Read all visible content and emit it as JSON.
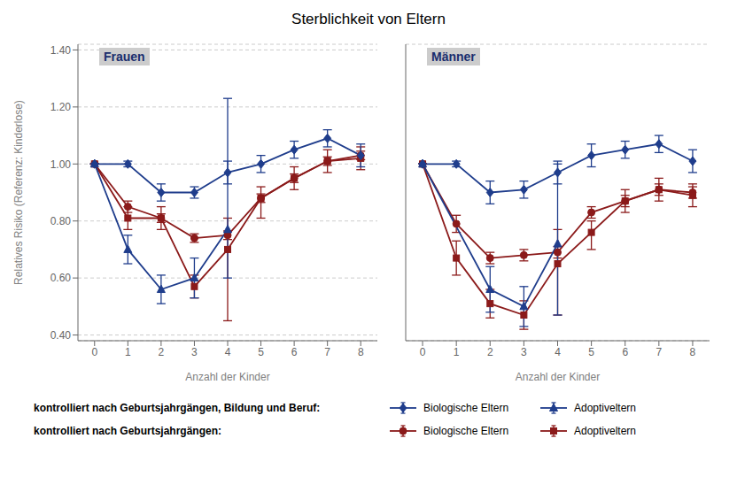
{
  "title": "Sterblichkeit von Eltern",
  "chart_data": [
    {
      "type": "line",
      "title": "Frauen",
      "xlabel": "Anzahl der Kinder",
      "ylabel": "Relatives Risiko (Referenz: Kinderlose)",
      "xlim": [
        -0.5,
        8.5
      ],
      "xticks": [
        0,
        1,
        2,
        3,
        4,
        5,
        6,
        7,
        8
      ],
      "ylim": [
        0.38,
        1.42
      ],
      "yticks": [
        {
          "value": 0.4,
          "label": "0.40"
        },
        {
          "value": 0.6,
          "label": "0.60"
        },
        {
          "value": 0.8,
          "label": "0.80"
        },
        {
          "value": 1.0,
          "label": "1.00"
        },
        {
          "value": 1.2,
          "label": "1.20"
        },
        {
          "value": 1.4,
          "label": "1.40"
        }
      ],
      "grid": true,
      "series": [
        {
          "name": "Biologische Eltern",
          "group": "kontrolliert nach Geburtsjahrgängen, Bildung und Beruf:",
          "color": "#1f3d8c",
          "marker": "diamond",
          "line_style": "solid",
          "x": [
            0,
            1,
            2,
            3,
            4,
            5,
            6,
            7,
            8
          ],
          "values": [
            1.0,
            1.0,
            0.9,
            0.9,
            0.97,
            1.0,
            1.05,
            1.09,
            1.03
          ],
          "yerr_lo": [
            0.0,
            0.01,
            0.03,
            0.02,
            0.04,
            0.03,
            0.03,
            0.03,
            0.04
          ],
          "yerr_hi": [
            0.0,
            0.01,
            0.03,
            0.02,
            0.04,
            0.03,
            0.03,
            0.03,
            0.04
          ]
        },
        {
          "name": "Adoptiveltern",
          "group": "kontrolliert nach Geburtsjahrgängen, Bildung und Beruf:",
          "color": "#1f3d8c",
          "marker": "triangle",
          "line_style": "solid",
          "x": [
            0,
            1,
            2,
            3,
            4
          ],
          "values": [
            1.0,
            0.7,
            0.56,
            0.6,
            0.77
          ],
          "yerr_lo": [
            0.0,
            0.05,
            0.05,
            0.07,
            0.17
          ],
          "yerr_hi": [
            0.0,
            0.05,
            0.05,
            0.07,
            0.46
          ]
        },
        {
          "name": "Biologische Eltern",
          "group": "kontrolliert nach Geburtsjahrgängen:",
          "color": "#8b1a1a",
          "marker": "circle",
          "line_style": "solid",
          "x": [
            0,
            1,
            2,
            3,
            4,
            5,
            6,
            7,
            8
          ],
          "values": [
            1.0,
            0.85,
            0.81,
            0.74,
            0.75,
            0.88,
            0.95,
            1.01,
            1.03
          ],
          "yerr_lo": [
            0.0,
            0.02,
            0.015,
            0.015,
            0.015,
            0.015,
            0.015,
            0.015,
            0.015
          ],
          "yerr_hi": [
            0.0,
            0.02,
            0.015,
            0.015,
            0.015,
            0.015,
            0.015,
            0.015,
            0.015
          ]
        },
        {
          "name": "Adoptiveltern",
          "group": "kontrolliert nach Geburtsjahrgängen:",
          "color": "#8b1a1a",
          "marker": "square",
          "line_style": "solid",
          "x": [
            0,
            1,
            2,
            3,
            4,
            5,
            6,
            7,
            8
          ],
          "values": [
            1.0,
            0.81,
            0.81,
            0.57,
            0.7,
            0.88,
            0.95,
            1.01,
            1.02
          ],
          "yerr_lo": [
            0.0,
            0.04,
            0.04,
            0.04,
            0.25,
            0.07,
            0.04,
            0.04,
            0.04
          ],
          "yerr_hi": [
            0.0,
            0.04,
            0.04,
            0.04,
            0.11,
            0.04,
            0.04,
            0.04,
            0.04
          ]
        }
      ]
    },
    {
      "type": "line",
      "title": "Männer",
      "xlabel": "Anzahl der Kinder",
      "xlim": [
        -0.5,
        8.5
      ],
      "xticks": [
        0,
        1,
        2,
        3,
        4,
        5,
        6,
        7,
        8
      ],
      "ylim": [
        0.38,
        1.42
      ],
      "yticks": [
        {
          "value": 0.4,
          "label": "0.40"
        },
        {
          "value": 0.6,
          "label": "0.60"
        },
        {
          "value": 0.8,
          "label": "0.80"
        },
        {
          "value": 1.0,
          "label": "1.00"
        },
        {
          "value": 1.2,
          "label": "1.20"
        },
        {
          "value": 1.4,
          "label": "1.40"
        }
      ],
      "grid": true,
      "tick_labels": "x",
      "series": [
        {
          "name": "Biologische Eltern",
          "group": "kontrolliert nach Geburtsjahrgängen, Bildung und Beruf:",
          "color": "#1f3d8c",
          "marker": "diamond",
          "line_style": "solid",
          "x": [
            0,
            1,
            2,
            3,
            4,
            5,
            6,
            7,
            8
          ],
          "values": [
            1.0,
            1.0,
            0.9,
            0.91,
            0.97,
            1.03,
            1.05,
            1.07,
            1.01
          ],
          "yerr_lo": [
            0.0,
            0.01,
            0.04,
            0.03,
            0.04,
            0.04,
            0.03,
            0.03,
            0.04
          ],
          "yerr_hi": [
            0.0,
            0.01,
            0.04,
            0.03,
            0.04,
            0.04,
            0.03,
            0.03,
            0.04
          ]
        },
        {
          "name": "Adoptiveltern",
          "group": "kontrolliert nach Geburtsjahrgängen, Bildung und Beruf:",
          "color": "#1f3d8c",
          "marker": "triangle",
          "line_style": "solid",
          "x": [
            0,
            2,
            3,
            4
          ],
          "values": [
            1.0,
            0.56,
            0.5,
            0.72
          ],
          "yerr_lo": [
            0.0,
            0.08,
            0.07,
            0.25
          ],
          "yerr_hi": [
            0.0,
            0.08,
            0.07,
            0.28
          ]
        },
        {
          "name": "Biologische Eltern",
          "group": "kontrolliert nach Geburtsjahrgängen:",
          "color": "#8b1a1a",
          "marker": "circle",
          "line_style": "solid",
          "x": [
            0,
            1,
            2,
            3,
            4,
            5,
            6,
            7,
            8
          ],
          "values": [
            1.0,
            0.79,
            0.67,
            0.68,
            0.69,
            0.83,
            0.87,
            0.91,
            0.9
          ],
          "yerr_lo": [
            0.0,
            0.03,
            0.02,
            0.02,
            0.02,
            0.02,
            0.02,
            0.02,
            0.02
          ],
          "yerr_hi": [
            0.0,
            0.03,
            0.02,
            0.02,
            0.02,
            0.02,
            0.02,
            0.02,
            0.02
          ]
        },
        {
          "name": "Adoptiveltern",
          "group": "kontrolliert nach Geburtsjahrgängen:",
          "color": "#8b1a1a",
          "marker": "square",
          "line_style": "solid",
          "x": [
            0,
            1,
            2,
            3,
            4,
            5,
            6,
            7,
            8
          ],
          "values": [
            1.0,
            0.67,
            0.51,
            0.47,
            0.65,
            0.76,
            0.87,
            0.91,
            0.89
          ],
          "yerr_lo": [
            0.0,
            0.06,
            0.05,
            0.05,
            0.18,
            0.06,
            0.04,
            0.04,
            0.04
          ],
          "yerr_hi": [
            0.0,
            0.06,
            0.05,
            0.05,
            0.12,
            0.04,
            0.04,
            0.04,
            0.04
          ]
        }
      ]
    }
  ]
}
